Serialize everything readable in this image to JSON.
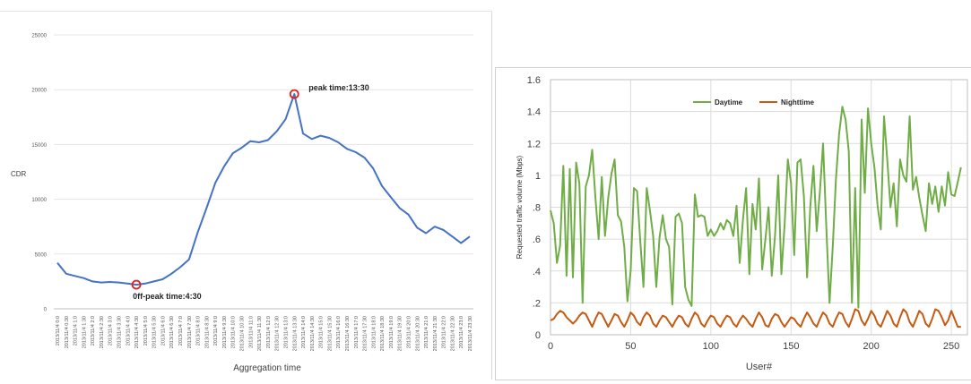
{
  "chart_data": [
    {
      "type": "line",
      "ylabel": "CDR",
      "xlabel": "Aggregation time",
      "ylim": [
        0,
        25000
      ],
      "yticks": [
        "0",
        "5000",
        "10000",
        "15000",
        "20000",
        "25000"
      ],
      "grid": "horizontal",
      "categories": [
        "2013/11/4 0:0",
        "2013/11/4 0:30",
        "2013/11/4 1:0",
        "2013/11/4 1:30",
        "2013/11/4 2:0",
        "2013/11/4 2:30",
        "2013/11/4 3:0",
        "2013/11/4 3:30",
        "2013/11/4 4:0",
        "2013/11/4 4:30",
        "2013/11/4 5:0",
        "2013/11/4 5:30",
        "2013/11/4 6:0",
        "2013/11/4 6:30",
        "2013/11/4 7:0",
        "2013/11/4 7:30",
        "2013/11/4 8:0",
        "2013/11/4 8:30",
        "2013/11/4 9:0",
        "2013/11/4 9:30",
        "2013/11/4 10:0",
        "2013/11/4 10:30",
        "2013/11/4 11:0",
        "2013/11/4 11:30",
        "2013/11/4 12:0",
        "2013/11/4 12:30",
        "2013/11/4 13:0",
        "2013/11/4 13:30",
        "2013/11/4 14:0",
        "2013/11/4 14:30",
        "2013/11/4 15:0",
        "2013/11/4 15:30",
        "2013/11/4 16:0",
        "2013/11/4 16:30",
        "2013/11/4 17:0",
        "2013/11/4 17:30",
        "2013/11/4 18:0",
        "2013/11/4 18:30",
        "2013/11/4 19:0",
        "2013/11/4 19:30",
        "2013/11/4 20:0",
        "2013/11/4 20:30",
        "2013/11/4 21:0",
        "2013/11/4 21:30",
        "2013/11/4 22:0",
        "2013/11/4 22:30",
        "2013/11/4 23:0",
        "2013/11/4 23:30"
      ],
      "series": [
        {
          "color": "#4472c4",
          "values": [
            4200,
            3200,
            3000,
            2800,
            2500,
            2400,
            2450,
            2400,
            2300,
            2200,
            2300,
            2500,
            2700,
            3200,
            3800,
            4500,
            7000,
            9200,
            11500,
            13000,
            14200,
            14700,
            15300,
            15200,
            15400,
            16200,
            17300,
            19600,
            16000,
            15500,
            15800,
            15600,
            15200,
            14600,
            14300,
            13800,
            12800,
            11200,
            10200,
            9200,
            8600,
            7400,
            6900,
            7500,
            7200,
            6600,
            6000,
            6600
          ]
        }
      ],
      "annotations": [
        {
          "label": "peak time:13:30",
          "x": "2013/11/4 13:30",
          "y": 19600
        },
        {
          "label": "0ff-peak time:4:30",
          "x": "2013/11/4 4:30",
          "y": 2200
        }
      ]
    },
    {
      "type": "line",
      "ylabel": "Requested traffic volume (Mbps)",
      "xlabel": "User#",
      "xlim": [
        0,
        260
      ],
      "ylim": [
        0,
        1.6
      ],
      "xticks": [
        "0",
        "50",
        "100",
        "150",
        "200",
        "250"
      ],
      "yticks": [
        "0",
        ".2",
        ".4",
        ".6",
        ".8",
        "1",
        "1.2",
        "1.4",
        "1.6"
      ],
      "grid": "both",
      "legend": "top",
      "series": [
        {
          "name": "Daytime",
          "color": "#70ad47",
          "x": [
            0,
            2,
            4,
            6,
            8,
            10,
            12,
            14,
            16,
            18,
            20,
            22,
            24,
            26,
            28,
            30,
            32,
            34,
            36,
            38,
            40,
            42,
            44,
            46,
            48,
            50,
            52,
            54,
            56,
            58,
            60,
            62,
            64,
            66,
            68,
            70,
            72,
            74,
            76,
            78,
            80,
            82,
            84,
            86,
            88,
            90,
            92,
            94,
            96,
            98,
            100,
            102,
            104,
            106,
            108,
            110,
            112,
            114,
            116,
            118,
            120,
            122,
            124,
            126,
            128,
            130,
            132,
            134,
            136,
            138,
            140,
            142,
            144,
            146,
            148,
            150,
            152,
            154,
            156,
            158,
            160,
            162,
            164,
            166,
            168,
            170,
            172,
            174,
            176,
            178,
            180,
            182,
            184,
            186,
            188,
            190,
            192,
            194,
            196,
            198,
            200,
            202,
            204,
            206,
            208,
            210,
            212,
            214,
            216,
            218,
            220,
            222,
            224,
            226,
            228,
            230,
            232,
            234,
            236,
            238,
            240,
            242,
            244,
            246,
            248,
            250,
            252,
            254,
            256
          ],
          "y": [
            0.78,
            0.7,
            0.45,
            0.56,
            1.06,
            0.37,
            1.04,
            0.36,
            1.08,
            0.95,
            0.2,
            0.93,
            1.0,
            1.16,
            0.86,
            0.6,
            0.99,
            0.62,
            0.86,
            1.01,
            1.1,
            0.75,
            0.71,
            0.55,
            0.21,
            0.4,
            0.92,
            0.9,
            0.58,
            0.3,
            0.92,
            0.78,
            0.62,
            0.3,
            0.61,
            0.75,
            0.6,
            0.55,
            0.19,
            0.74,
            0.76,
            0.7,
            0.3,
            0.22,
            0.18,
            0.88,
            0.74,
            0.75,
            0.74,
            0.62,
            0.66,
            0.62,
            0.65,
            0.7,
            0.66,
            0.72,
            0.7,
            0.62,
            0.81,
            0.45,
            0.72,
            0.92,
            0.38,
            0.82,
            0.66,
            0.98,
            0.41,
            0.6,
            0.8,
            0.37,
            0.62,
            1.0,
            0.38,
            0.69,
            1.1,
            0.95,
            0.5,
            1.08,
            1.1,
            0.87,
            0.36,
            0.8,
            1.06,
            0.65,
            0.9,
            1.2,
            0.68,
            0.2,
            0.55,
            0.97,
            1.26,
            1.43,
            1.35,
            1.15,
            0.2,
            0.92,
            0.17,
            1.35,
            0.89,
            1.42,
            1.2,
            1.05,
            0.81,
            0.66,
            1.37,
            1.1,
            0.8,
            0.95,
            0.68,
            1.1,
            1.0,
            0.96,
            1.37,
            0.91,
            0.99,
            0.86,
            0.75,
            0.65,
            0.95,
            0.82,
            0.93,
            0.77,
            0.93,
            0.81,
            1.02,
            0.88,
            0.87,
            0.96,
            1.05
          ]
        },
        {
          "name": "Nighttime",
          "color": "#c55a11",
          "x": [
            0,
            2,
            4,
            6,
            8,
            10,
            12,
            14,
            16,
            18,
            20,
            22,
            24,
            26,
            28,
            30,
            32,
            34,
            36,
            38,
            40,
            42,
            44,
            46,
            48,
            50,
            52,
            54,
            56,
            58,
            60,
            62,
            64,
            66,
            68,
            70,
            72,
            74,
            76,
            78,
            80,
            82,
            84,
            86,
            88,
            90,
            92,
            94,
            96,
            98,
            100,
            102,
            104,
            106,
            108,
            110,
            112,
            114,
            116,
            118,
            120,
            122,
            124,
            126,
            128,
            130,
            132,
            134,
            136,
            138,
            140,
            142,
            144,
            146,
            148,
            150,
            152,
            154,
            156,
            158,
            160,
            162,
            164,
            166,
            168,
            170,
            172,
            174,
            176,
            178,
            180,
            182,
            184,
            186,
            188,
            190,
            192,
            194,
            196,
            198,
            200,
            202,
            204,
            206,
            208,
            210,
            212,
            214,
            216,
            218,
            220,
            222,
            224,
            226,
            228,
            230,
            232,
            234,
            236,
            238,
            240,
            242,
            244,
            246,
            248,
            250,
            252,
            254,
            256
          ],
          "y": [
            0.09,
            0.1,
            0.13,
            0.15,
            0.14,
            0.11,
            0.09,
            0.07,
            0.09,
            0.12,
            0.14,
            0.13,
            0.09,
            0.05,
            0.1,
            0.14,
            0.13,
            0.09,
            0.05,
            0.09,
            0.13,
            0.12,
            0.08,
            0.05,
            0.09,
            0.14,
            0.12,
            0.08,
            0.06,
            0.11,
            0.14,
            0.12,
            0.07,
            0.05,
            0.09,
            0.12,
            0.11,
            0.08,
            0.05,
            0.09,
            0.12,
            0.11,
            0.07,
            0.05,
            0.1,
            0.14,
            0.12,
            0.07,
            0.05,
            0.09,
            0.12,
            0.11,
            0.07,
            0.05,
            0.09,
            0.12,
            0.11,
            0.07,
            0.05,
            0.09,
            0.12,
            0.1,
            0.07,
            0.05,
            0.1,
            0.14,
            0.11,
            0.06,
            0.05,
            0.1,
            0.13,
            0.12,
            0.08,
            0.05,
            0.08,
            0.11,
            0.1,
            0.07,
            0.05,
            0.1,
            0.14,
            0.11,
            0.07,
            0.05,
            0.1,
            0.14,
            0.12,
            0.07,
            0.05,
            0.1,
            0.14,
            0.13,
            0.08,
            0.05,
            0.1,
            0.16,
            0.15,
            0.09,
            0.06,
            0.1,
            0.15,
            0.12,
            0.07,
            0.05,
            0.1,
            0.15,
            0.12,
            0.07,
            0.05,
            0.11,
            0.16,
            0.14,
            0.08,
            0.05,
            0.1,
            0.15,
            0.13,
            0.07,
            0.05,
            0.1,
            0.16,
            0.15,
            0.11,
            0.06,
            0.09,
            0.15,
            0.1,
            0.05,
            0.05
          ]
        }
      ]
    }
  ]
}
